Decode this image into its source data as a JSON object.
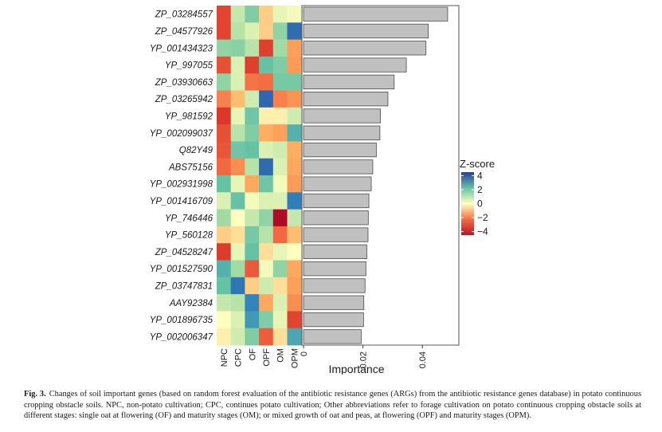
{
  "chart_data": {
    "type": "heatmap",
    "rows": [
      "ZP_03284557",
      "ZP_04577926",
      "YP_001434323",
      "YP_997055",
      "ZP_03930663",
      "ZP_03265942",
      "YP_981592",
      "YP_002099037",
      "Q82Y49",
      "ABS75156",
      "YP_002931998",
      "YP_001416709",
      "YP_746446",
      "YP_560128",
      "ZP_04528247",
      "YP_001527590",
      "ZP_03747831",
      "AAY92384",
      "YP_001896735",
      "YP_002006347"
    ],
    "columns": [
      "NPC",
      "CPC",
      "OF",
      "OPF",
      "OM",
      "OPM"
    ],
    "zscores": [
      [
        -2.5,
        0.5,
        1.2,
        -0.3,
        0.2,
        0.1
      ],
      [
        -2.5,
        0.6,
        0.3,
        -0.3,
        1.0,
        3.2
      ],
      [
        1.0,
        1.1,
        0.6,
        -2.6,
        0.8,
        -0.7
      ],
      [
        -2.2,
        0.3,
        -2.6,
        1.5,
        1.2,
        -0.8
      ],
      [
        1.0,
        0.3,
        -1.4,
        -1.5,
        1.3,
        1.3
      ],
      [
        -1.2,
        -0.4,
        0.4,
        3.4,
        -1.2,
        -0.9
      ],
      [
        -2.8,
        0.2,
        1.4,
        -0.1,
        -0.1,
        0.4
      ],
      [
        -2.2,
        0.6,
        1.2,
        -0.5,
        -0.7,
        1.8
      ],
      [
        -2.1,
        1.4,
        1.5,
        0.3,
        0.4,
        -0.5
      ],
      [
        -1.6,
        -1.0,
        0.6,
        3.3,
        0.3,
        -0.6
      ],
      [
        1.5,
        0.2,
        -0.6,
        1.4,
        0.1,
        -0.8
      ],
      [
        0.3,
        1.5,
        0.1,
        0.3,
        0.3,
        2.8
      ],
      [
        0.8,
        0.0,
        0.5,
        1.0,
        -4.2,
        0.5
      ],
      [
        -0.3,
        -0.2,
        1.3,
        0.6,
        -1.6,
        -0.4
      ],
      [
        -2.7,
        0.2,
        1.5,
        -0.2,
        0.2,
        0.0
      ],
      [
        1.8,
        0.8,
        -2.0,
        0.1,
        1.0,
        -0.6
      ],
      [
        1.5,
        3.0,
        -0.3,
        0.4,
        -0.2,
        -0.7
      ],
      [
        0.5,
        0.6,
        2.6,
        -0.6,
        0.3,
        -1.0
      ],
      [
        0.0,
        0.3,
        2.2,
        1.2,
        0.2,
        -2.5
      ],
      [
        -0.1,
        0.4,
        1.2,
        -1.9,
        -0.2,
        2.0
      ]
    ],
    "importance": [
      0.0485,
      0.042,
      0.0412,
      0.0346,
      0.0305,
      0.0284,
      0.0259,
      0.0257,
      0.0245,
      0.0233,
      0.0228,
      0.022,
      0.0218,
      0.0217,
      0.0213,
      0.021,
      0.0207,
      0.0203,
      0.0202,
      0.0194
    ],
    "xlabel": "Importance",
    "xlim": [
      0,
      0.052
    ],
    "xticks": [
      "0",
      "0.02",
      "0.04"
    ],
    "legend": {
      "title": "Z-score",
      "ticks": [
        "4",
        "2",
        "0",
        "−2",
        "−4"
      ],
      "range": [
        -4.5,
        4.5
      ]
    },
    "colors": {
      "low": "#b2182b",
      "mid_low": "#fdae61",
      "mid": "#ffffbf",
      "mid_high": "#66c2a5",
      "high": "#2b3c99",
      "bar_fill": "#c0c0c0",
      "bar_stroke": "#4a4a4a"
    }
  },
  "caption": {
    "fig_no": "Fig. 3.",
    "text": "Changes of soil important genes (based on random forest evaluation of the antibiotic resistance genes (ARGs) from the antibiotic resistance genes database) in potato continuous cropping obstacle soils. NPC, non-potato cultivation; CPC, continues potato cultivation; Other abbreviations refer to forage cultivation on potato continuous cropping obstacle soils at different stages: single oat at flowering (OF) and maturity stages (OM); or mixed growth of oat and peas, at flowering (OPF) and maturity stages (OPM)."
  }
}
